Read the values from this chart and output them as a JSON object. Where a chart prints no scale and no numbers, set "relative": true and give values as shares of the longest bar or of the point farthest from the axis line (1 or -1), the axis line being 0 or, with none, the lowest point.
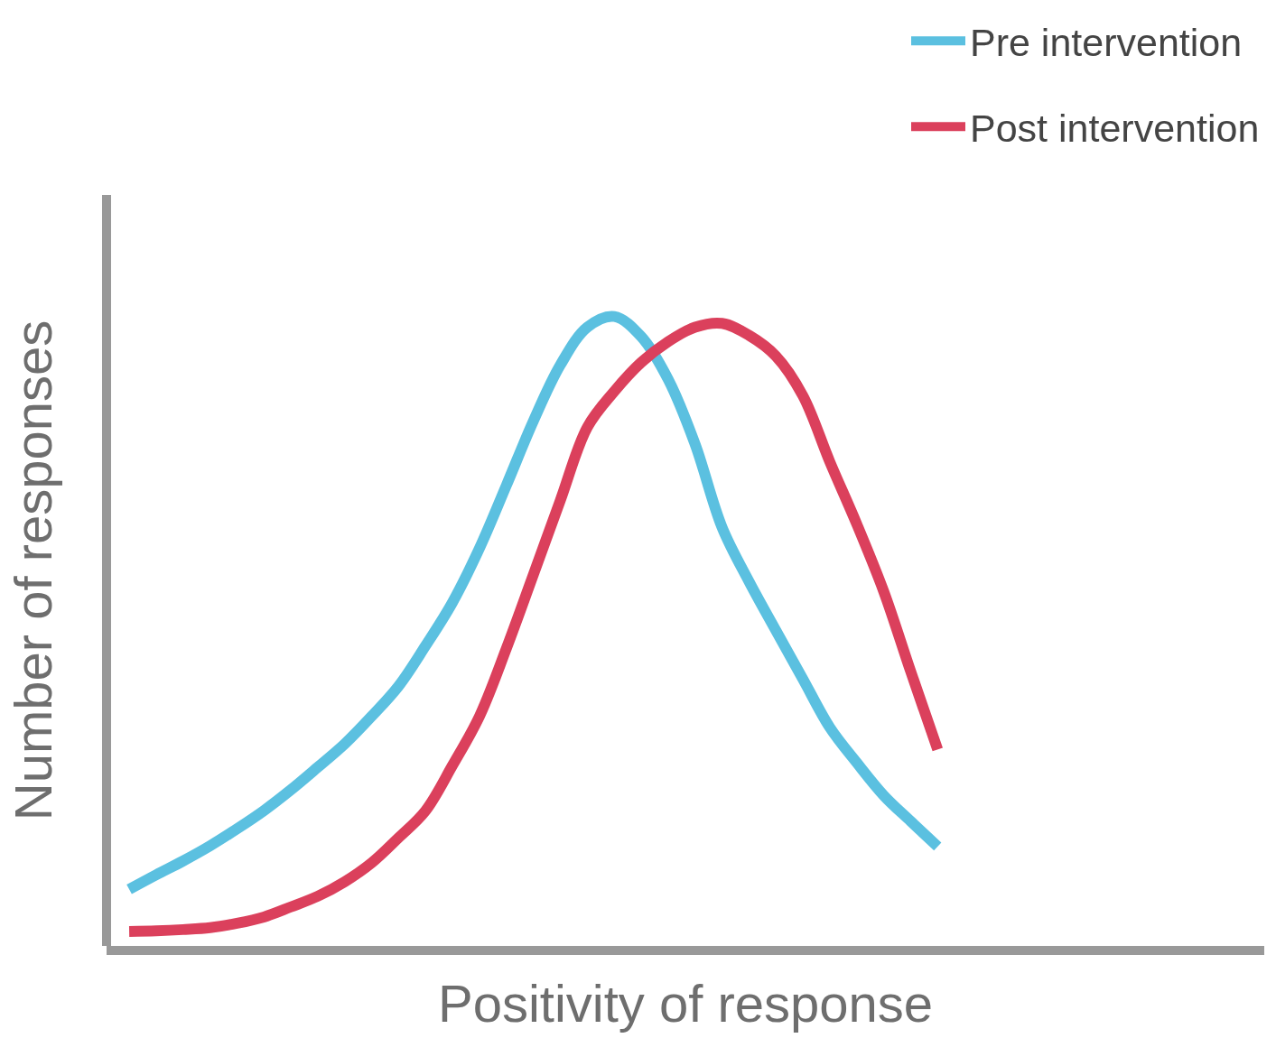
{
  "chart_data": {
    "type": "line",
    "relative": true,
    "xlabel": "Positivity of response",
    "ylabel": "Number of responses",
    "categories": [
      null,
      null,
      null,
      null,
      null,
      null,
      null,
      null,
      null,
      null,
      null,
      null,
      null,
      null,
      null,
      null,
      null,
      null,
      null,
      null,
      null,
      null,
      null,
      null,
      null,
      null,
      null,
      null,
      null,
      null,
      null
    ],
    "series": [
      {
        "name": "Pre intervention",
        "color": "#5bc0e0",
        "values": [
          0.09,
          0.113,
          0.135,
          0.159,
          0.186,
          0.215,
          0.248,
          0.284,
          0.321,
          0.365,
          0.413,
          0.477,
          0.546,
          0.632,
          0.732,
          0.834,
          0.923,
          0.983,
          1.0,
          0.968,
          0.9,
          0.797,
          0.665,
          0.579,
          0.501,
          0.424,
          0.347,
          0.291,
          0.239,
          0.198,
          0.158
        ]
      },
      {
        "name": "Post intervention",
        "color": "#db405c",
        "values": [
          0.023,
          0.024,
          0.026,
          0.029,
          0.036,
          0.046,
          0.062,
          0.079,
          0.102,
          0.132,
          0.172,
          0.215,
          0.287,
          0.365,
          0.473,
          0.59,
          0.708,
          0.824,
          0.881,
          0.927,
          0.96,
          0.983,
          0.989,
          0.97,
          0.937,
          0.874,
          0.769,
          0.67,
          0.563,
          0.436,
          0.312
        ]
      }
    ],
    "legend": "top right"
  }
}
